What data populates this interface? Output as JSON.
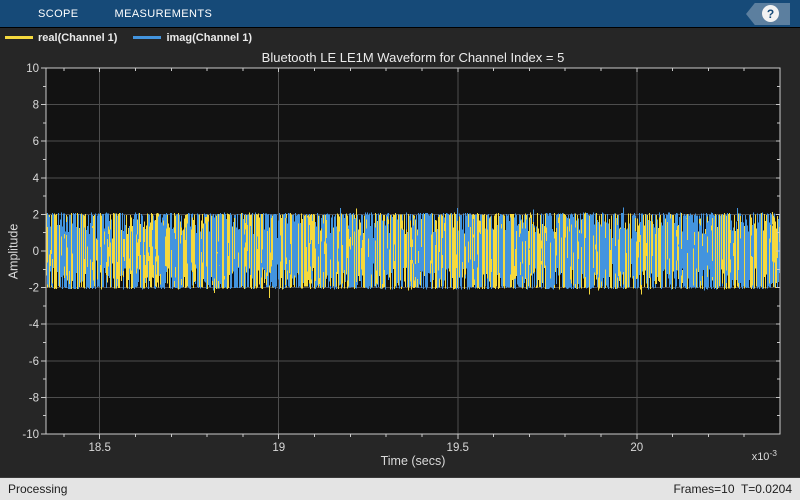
{
  "toolstrip": {
    "tabs": [
      {
        "label": "SCOPE",
        "active": true
      },
      {
        "label": "MEASUREMENTS",
        "active": false
      }
    ],
    "help_glyph": "?"
  },
  "legend": {
    "items": [
      {
        "label": "real(Channel 1)",
        "color": "#f5d93e"
      },
      {
        "label": "imag(Channel 1)",
        "color": "#4394de"
      }
    ]
  },
  "chart_data": {
    "type": "line",
    "title": "Bluetooth LE LE1M Waveform for Channel Index = 5",
    "xlabel": "Time (secs)",
    "ylabel": "Amplitude",
    "x_scale_exponent": {
      "base": "x10",
      "exp": "-3"
    },
    "xlim": [
      18.35,
      20.4
    ],
    "ylim": [
      -10,
      10
    ],
    "x_ticks": [
      {
        "value": 18.5,
        "label": "18.5"
      },
      {
        "value": 19,
        "label": "19"
      },
      {
        "value": 19.5,
        "label": "19.5"
      },
      {
        "value": 20,
        "label": "20"
      }
    ],
    "x_minor_step": 0.1,
    "y_ticks": [
      {
        "value": -10,
        "label": "-10"
      },
      {
        "value": -8,
        "label": "-8"
      },
      {
        "value": -6,
        "label": "-6"
      },
      {
        "value": -4,
        "label": "-4"
      },
      {
        "value": -2,
        "label": "-2"
      },
      {
        "value": 0,
        "label": "0"
      },
      {
        "value": 2,
        "label": "2"
      },
      {
        "value": 4,
        "label": "4"
      },
      {
        "value": 6,
        "label": "6"
      },
      {
        "value": 8,
        "label": "8"
      },
      {
        "value": 10,
        "label": "10"
      }
    ],
    "y_minor_step": 1,
    "grid": true,
    "legend_position": "top-left-bar",
    "series": [
      {
        "name": "real(Channel 1)",
        "color": "#f5d93e",
        "kind": "dense-oscillation",
        "amplitude_range": [
          -1,
          1
        ]
      },
      {
        "name": "imag(Channel 1)",
        "color": "#4394de",
        "kind": "dense-oscillation",
        "amplitude_range": [
          -1,
          1
        ]
      }
    ],
    "signal_band": {
      "min": -1,
      "max": 1,
      "seed": 20,
      "blue_fraction": 0.62
    },
    "note": "Dense GFSK I/Q waveform oscillating between -1 and +1 across the entire visible time span"
  },
  "statusbar": {
    "left": "Processing",
    "right": "Frames=10  T=0.0204"
  },
  "colors": {
    "toolstrip_bg": "#164a78",
    "figure_bg": "#262626",
    "plot_bg": "#121212",
    "grid": "#4d4d4d",
    "frame": "#cbcbcb",
    "tick": "#c9c9c9",
    "tick_label": "#d9d9d9",
    "statusbar_bg": "#e4e4e4",
    "help_badge": "#5c7f9f"
  }
}
